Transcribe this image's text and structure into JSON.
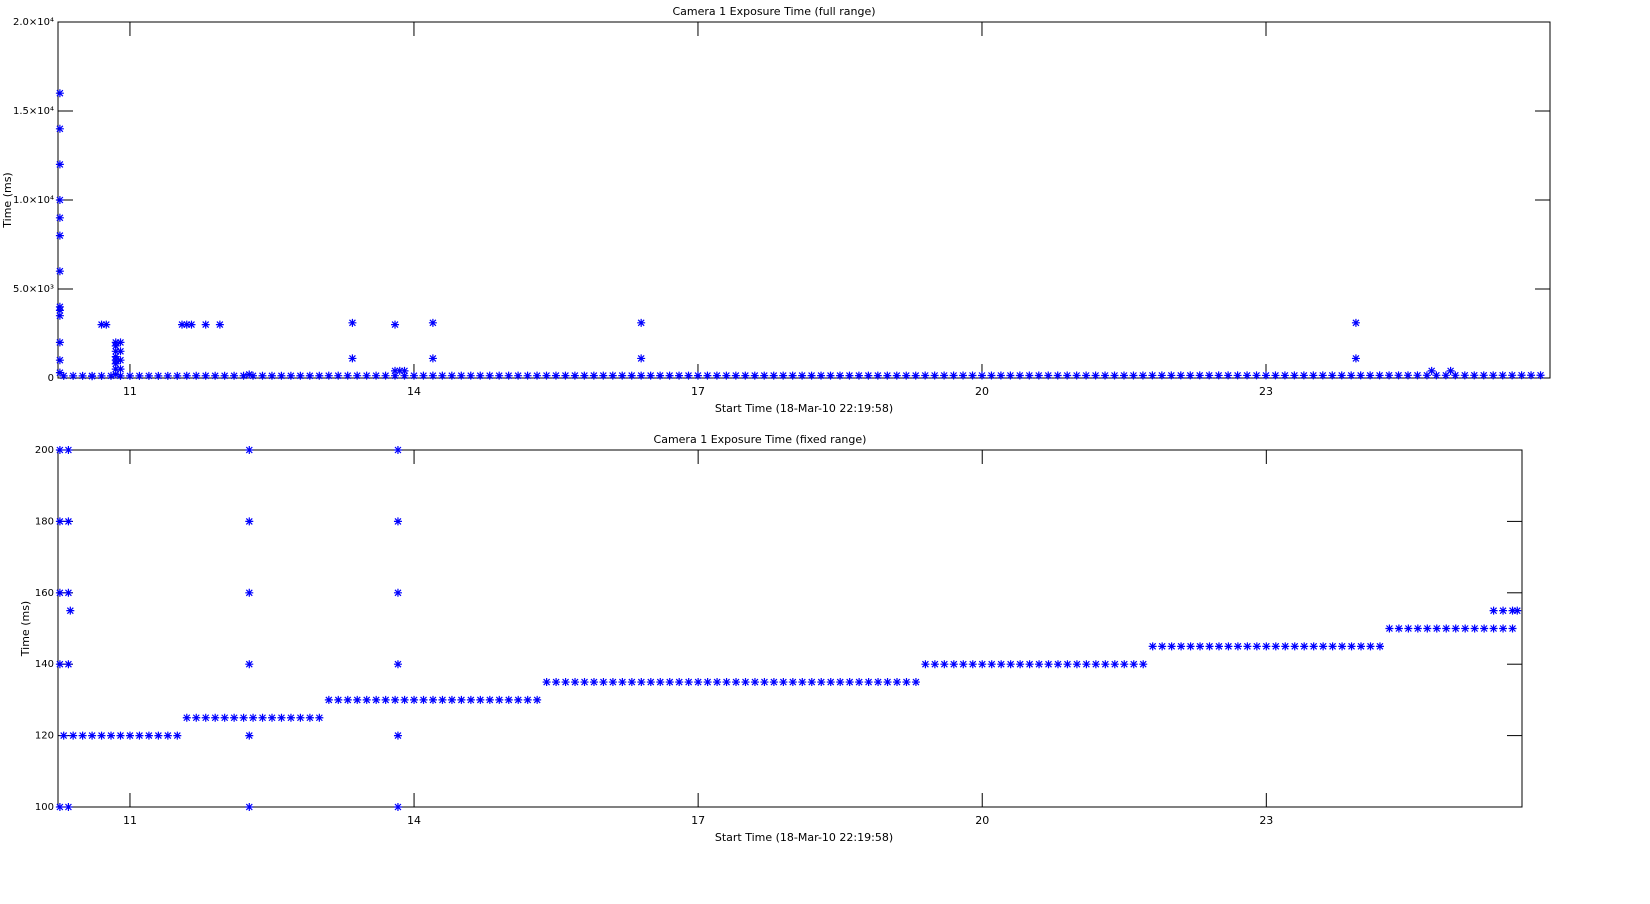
{
  "charts": [
    {
      "type": "scatter",
      "title": "Camera 1 Exposure Time (full range)",
      "x_label": "Start Time (18-Mar-10 22:19:58)",
      "y_label": "Time (ms)",
      "xlim": [
        10.24,
        26.0
      ],
      "xticks": [
        11,
        14,
        17,
        20,
        23
      ],
      "ylim": [
        0,
        20000
      ],
      "yticks": [
        0,
        {
          "value": 5000,
          "label": "5.0×10³"
        },
        {
          "value": 10000,
          "label": "1.0×10⁴"
        },
        {
          "value": 15000,
          "label": "1.5×10⁴"
        },
        {
          "value": 20000,
          "label": "2.0×10⁴"
        }
      ],
      "series": [
        {
          "color": "#0000ff",
          "x": [
            10.3,
            10.4,
            10.5,
            10.6,
            10.7,
            10.8,
            10.9,
            11,
            11.1,
            11.2,
            11.3,
            11.4,
            11.5,
            11.6,
            11.7,
            11.8,
            11.9,
            12,
            12.1,
            12.2,
            12.3,
            12.4,
            12.5,
            12.6,
            12.7,
            12.8,
            12.9,
            13,
            13.1,
            13.2,
            13.3,
            13.4,
            13.5,
            13.6,
            13.7,
            13.8,
            13.9,
            14,
            14.1,
            14.2,
            14.3,
            14.4,
            14.5,
            14.6,
            14.7,
            14.8,
            14.9,
            15,
            15.1,
            15.2,
            15.3,
            15.4,
            15.5,
            15.6,
            15.7,
            15.8,
            15.9,
            16,
            16.1,
            16.2,
            16.3,
            16.4,
            16.5,
            16.6,
            16.7,
            16.8,
            16.9,
            17,
            17.1,
            17.2,
            17.3,
            17.4,
            17.5,
            17.6,
            17.7,
            17.8,
            17.9,
            18,
            18.1,
            18.2,
            18.3,
            18.4,
            18.5,
            18.6,
            18.7,
            18.8,
            18.9,
            19,
            19.1,
            19.2,
            19.3,
            19.4,
            19.5,
            19.6,
            19.7,
            19.8,
            19.9,
            20,
            20.1,
            20.2,
            20.3,
            20.4,
            20.5,
            20.6,
            20.7,
            20.8,
            20.9,
            21,
            21.1,
            21.2,
            21.3,
            21.4,
            21.5,
            21.6,
            21.7,
            21.8,
            21.9,
            22,
            22.1,
            22.2,
            22.3,
            22.4,
            22.5,
            22.6,
            22.7,
            22.8,
            22.9,
            23,
            23.1,
            23.2,
            23.3,
            23.4,
            23.5,
            23.6,
            23.7,
            23.8,
            23.9,
            24,
            24.1,
            24.2,
            24.3,
            24.4,
            24.5,
            24.6,
            24.7,
            24.8,
            24.9,
            25,
            25.1,
            25.2,
            25.3,
            25.4,
            25.5,
            25.6,
            25.7,
            25.8,
            25.9
          ],
          "values": [
            120,
            120,
            120,
            120,
            120,
            120,
            120,
            120,
            120,
            120,
            120,
            120,
            120,
            125,
            125,
            125,
            125,
            125,
            125,
            125,
            125,
            125,
            125,
            125,
            125,
            125,
            125,
            125,
            130,
            130,
            130,
            130,
            130,
            130,
            130,
            130,
            130,
            130,
            130,
            130,
            130,
            130,
            130,
            130,
            130,
            130,
            130,
            130,
            130,
            130,
            130,
            135,
            135,
            135,
            135,
            135,
            135,
            135,
            135,
            135,
            135,
            135,
            135,
            135,
            135,
            135,
            135,
            135,
            135,
            135,
            135,
            135,
            135,
            135,
            135,
            135,
            135,
            135,
            135,
            135,
            135,
            135,
            135,
            135,
            135,
            135,
            135,
            135,
            135,
            135,
            135,
            140,
            140,
            140,
            140,
            140,
            140,
            140,
            140,
            140,
            140,
            140,
            140,
            140,
            140,
            140,
            140,
            140,
            140,
            140,
            140,
            140,
            140,
            140,
            140,
            145,
            145,
            145,
            145,
            145,
            145,
            145,
            145,
            145,
            145,
            145,
            145,
            145,
            145,
            145,
            145,
            145,
            145,
            145,
            145,
            145,
            145,
            145,
            145,
            145,
            150,
            150,
            150,
            150,
            150,
            150,
            150,
            150,
            150,
            150,
            150,
            150,
            150,
            150,
            155,
            155,
            155
          ]
        },
        {
          "color": "#0000ff",
          "x": [
            10.26,
            10.26,
            10.26,
            10.26,
            10.26,
            10.26,
            10.26,
            10.26,
            10.26,
            10.26,
            10.26,
            10.26,
            10.26,
            10.6,
            10.7,
            10.75,
            10.85,
            10.85,
            10.85,
            10.85,
            10.85,
            10.85,
            10.85,
            10.85,
            10.9,
            10.9,
            10.9,
            10.9,
            11.55,
            11.6,
            11.65,
            11.8,
            11.95,
            12.26,
            13.35,
            13.35,
            13.8,
            13.8,
            13.85,
            13.9,
            14.2,
            14.2,
            16.4,
            16.4,
            23.95,
            23.95,
            24.75,
            24.95
          ],
          "values": [
            16000,
            14000,
            12000,
            10000,
            9000,
            8000,
            6000,
            4000,
            3800,
            3500,
            2000,
            1000,
            300,
            100,
            3000,
            3000,
            2000,
            1800,
            1500,
            1200,
            1000,
            800,
            500,
            200,
            2000,
            1500,
            1000,
            500,
            3000,
            3000,
            3000,
            3000,
            3000,
            200,
            3100,
            1100,
            3000,
            400,
            400,
            400,
            3100,
            1100,
            3100,
            1100,
            3100,
            1100,
            400,
            400
          ]
        }
      ]
    },
    {
      "type": "scatter",
      "title": "Camera 1 Exposure Time (fixed range)",
      "x_label": "Start Time (18-Mar-10 22:19:58)",
      "y_label": "Time (ms)",
      "xlim": [
        10.24,
        25.7
      ],
      "xticks": [
        11,
        14,
        17,
        20,
        23
      ],
      "ylim": [
        100,
        200
      ],
      "yticks": [
        100,
        120,
        140,
        160,
        180,
        200
      ],
      "series": [
        {
          "color": "#0000ff",
          "x": [
            10.3,
            10.4,
            10.5,
            10.6,
            10.7,
            10.8,
            10.9,
            11,
            11.1,
            11.2,
            11.3,
            11.4,
            11.5,
            11.6,
            11.7,
            11.8,
            11.9,
            12,
            12.1,
            12.2,
            12.3,
            12.4,
            12.5,
            12.6,
            12.7,
            12.8,
            12.9,
            13,
            13.1,
            13.2,
            13.3,
            13.4,
            13.5,
            13.6,
            13.7,
            13.8,
            13.9,
            14,
            14.1,
            14.2,
            14.3,
            14.4,
            14.5,
            14.6,
            14.7,
            14.8,
            14.9,
            15,
            15.1,
            15.2,
            15.3,
            15.4,
            15.5,
            15.6,
            15.7,
            15.8,
            15.9,
            16,
            16.1,
            16.2,
            16.3,
            16.4,
            16.5,
            16.6,
            16.7,
            16.8,
            16.9,
            17,
            17.1,
            17.2,
            17.3,
            17.4,
            17.5,
            17.6,
            17.7,
            17.8,
            17.9,
            18,
            18.1,
            18.2,
            18.3,
            18.4,
            18.5,
            18.6,
            18.7,
            18.8,
            18.9,
            19,
            19.1,
            19.2,
            19.3,
            19.4,
            19.5,
            19.6,
            19.7,
            19.8,
            19.9,
            20,
            20.1,
            20.2,
            20.3,
            20.4,
            20.5,
            20.6,
            20.7,
            20.8,
            20.9,
            21,
            21.1,
            21.2,
            21.3,
            21.4,
            21.5,
            21.6,
            21.7,
            21.8,
            21.9,
            22,
            22.1,
            22.2,
            22.3,
            22.4,
            22.5,
            22.6,
            22.7,
            22.8,
            22.9,
            23,
            23.1,
            23.2,
            23.3,
            23.4,
            23.5,
            23.6,
            23.7,
            23.8,
            23.9,
            24,
            24.1,
            24.2,
            24.3,
            24.4,
            24.5,
            24.6,
            24.7,
            24.8,
            24.9,
            25,
            25.1,
            25.2,
            25.3,
            25.4,
            25.5,
            25.6,
            25.4,
            25.5,
            25.6,
            25.65
          ],
          "values": [
            120,
            120,
            120,
            120,
            120,
            120,
            120,
            120,
            120,
            120,
            120,
            120,
            120,
            125,
            125,
            125,
            125,
            125,
            125,
            125,
            125,
            125,
            125,
            125,
            125,
            125,
            125,
            125,
            130,
            130,
            130,
            130,
            130,
            130,
            130,
            130,
            130,
            130,
            130,
            130,
            130,
            130,
            130,
            130,
            130,
            130,
            130,
            130,
            130,
            130,
            130,
            135,
            135,
            135,
            135,
            135,
            135,
            135,
            135,
            135,
            135,
            135,
            135,
            135,
            135,
            135,
            135,
            135,
            135,
            135,
            135,
            135,
            135,
            135,
            135,
            135,
            135,
            135,
            135,
            135,
            135,
            135,
            135,
            135,
            135,
            135,
            135,
            135,
            135,
            135,
            135,
            140,
            140,
            140,
            140,
            140,
            140,
            140,
            140,
            140,
            140,
            140,
            140,
            140,
            140,
            140,
            140,
            140,
            140,
            140,
            140,
            140,
            140,
            140,
            140,
            145,
            145,
            145,
            145,
            145,
            145,
            145,
            145,
            145,
            145,
            145,
            145,
            145,
            145,
            145,
            145,
            145,
            145,
            145,
            145,
            145,
            145,
            145,
            145,
            145,
            150,
            150,
            150,
            150,
            150,
            150,
            150,
            150,
            150,
            150,
            150,
            150,
            150,
            150,
            155,
            155,
            155,
            155
          ]
        },
        {
          "color": "#0000ff",
          "x": [
            10.26,
            10.26,
            10.26,
            10.26,
            10.26,
            10.35,
            10.35,
            10.35,
            10.35,
            10.35,
            10.37,
            12.26,
            12.26,
            12.26,
            12.26,
            12.26,
            12.26,
            13.83,
            13.83,
            13.83,
            13.83,
            13.83,
            13.83
          ],
          "values": [
            100,
            140,
            160,
            180,
            200,
            100,
            140,
            160,
            180,
            200,
            155,
            100,
            120,
            140,
            160,
            180,
            200,
            100,
            120,
            140,
            160,
            180,
            200
          ]
        }
      ]
    }
  ]
}
